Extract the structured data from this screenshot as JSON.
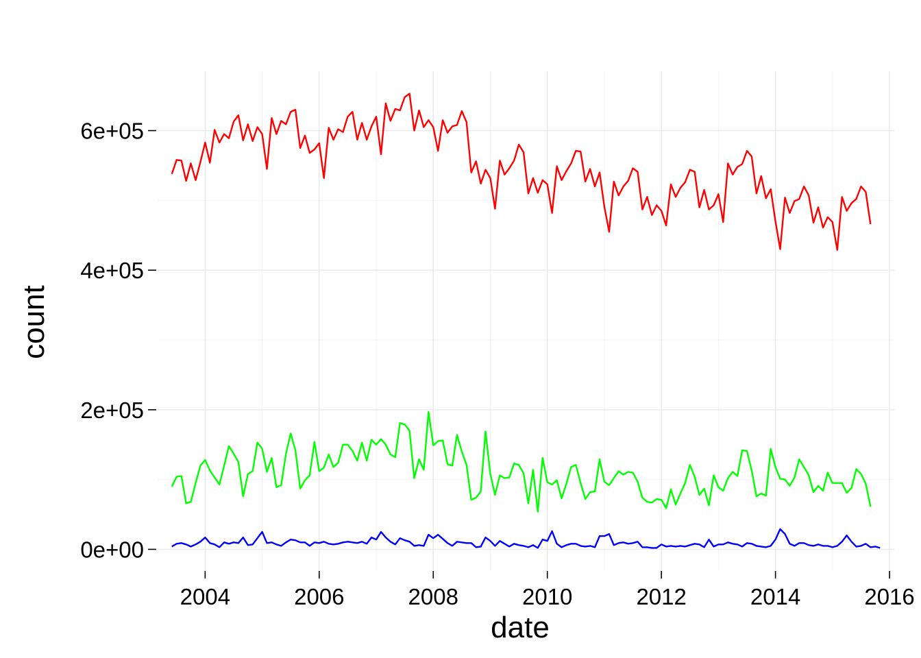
{
  "chart_data": {
    "type": "line",
    "title": "",
    "xlabel": "date",
    "ylabel": "count",
    "x_ticks": [
      "2004",
      "2006",
      "2008",
      "2010",
      "2012",
      "2014",
      "2016"
    ],
    "x_tick_years": [
      2004,
      2006,
      2008,
      2010,
      2012,
      2014,
      2016
    ],
    "y_ticks": [
      "0e+00",
      "2e+05",
      "4e+05",
      "6e+05"
    ],
    "y_tick_values": [
      0,
      200000,
      400000,
      600000
    ],
    "xlim": [
      "2003-03",
      "2016-02"
    ],
    "ylim": [
      -30000,
      685000
    ],
    "grid": true,
    "legend": "none",
    "x_start": "2003-06",
    "x_step": "1 month",
    "series": [
      {
        "color": "#ff0000",
        "values": [
          538000,
          558000,
          557000,
          528000,
          553000,
          529000,
          555000,
          583000,
          554000,
          601000,
          583000,
          595000,
          589000,
          613000,
          622000,
          586000,
          609000,
          585000,
          605000,
          595000,
          545000,
          618000,
          595000,
          614000,
          609000,
          627000,
          630000,
          575000,
          593000,
          568000,
          573000,
          582000,
          532000,
          604000,
          587000,
          602000,
          598000,
          620000,
          627000,
          587000,
          611000,
          587000,
          606000,
          620000,
          566000,
          639000,
          614000,
          631000,
          629000,
          648000,
          653000,
          600000,
          629000,
          605000,
          615000,
          605000,
          571000,
          615000,
          597000,
          606000,
          608000,
          628000,
          612000,
          540000,
          556000,
          524000,
          544000,
          532000,
          488000,
          557000,
          537000,
          546000,
          557000,
          580000,
          569000,
          510000,
          532000,
          511000,
          529000,
          523000,
          482000,
          549000,
          529000,
          542000,
          553000,
          571000,
          570000,
          527000,
          545000,
          520000,
          540000,
          491000,
          455000,
          527000,
          507000,
          520000,
          528000,
          546000,
          541000,
          487000,
          505000,
          479000,
          493000,
          485000,
          464000,
          523000,
          505000,
          518000,
          526000,
          544000,
          541000,
          490000,
          515000,
          487000,
          493000,
          509000,
          469000,
          553000,
          537000,
          548000,
          552000,
          571000,
          563000,
          510000,
          535000,
          503000,
          516000,
          470000,
          430000,
          504000,
          482000,
          499000,
          502000,
          520000,
          507000,
          468000,
          490000,
          461000,
          476000,
          469000,
          429000,
          505000,
          485000,
          496000,
          502000,
          520000,
          512000,
          466000
        ]
      },
      {
        "color": "#00ff00",
        "values": [
          90000,
          104000,
          105000,
          66000,
          68000,
          95000,
          120000,
          128000,
          113000,
          103000,
          93000,
          120000,
          148000,
          137000,
          125000,
          76000,
          108000,
          112000,
          153000,
          144000,
          111000,
          131000,
          89000,
          92000,
          137000,
          166000,
          142000,
          87000,
          99000,
          106000,
          154000,
          112000,
          117000,
          136000,
          118000,
          124000,
          150000,
          150000,
          141000,
          127000,
          153000,
          127000,
          157000,
          150000,
          158000,
          150000,
          136000,
          132000,
          181000,
          179000,
          170000,
          102000,
          129000,
          114000,
          197000,
          149000,
          155000,
          156000,
          122000,
          120000,
          164000,
          140000,
          121000,
          71000,
          74000,
          83000,
          169000,
          108000,
          78000,
          106000,
          102000,
          103000,
          123000,
          121000,
          109000,
          66000,
          114000,
          54000,
          131000,
          96000,
          93000,
          99000,
          73000,
          94000,
          118000,
          121000,
          95000,
          72000,
          82000,
          83000,
          129000,
          97000,
          92000,
          102000,
          112000,
          107000,
          111000,
          110000,
          97000,
          74000,
          68000,
          67000,
          72000,
          71000,
          59000,
          86000,
          64000,
          80000,
          95000,
          121000,
          104000,
          78000,
          87000,
          63000,
          106000,
          89000,
          84000,
          102000,
          111000,
          105000,
          142000,
          141000,
          113000,
          76000,
          80000,
          77000,
          144000,
          118000,
          101000,
          100000,
          91000,
          103000,
          129000,
          118000,
          106000,
          82000,
          91000,
          84000,
          110000,
          95000,
          95000,
          95000,
          81000,
          88000,
          115000,
          108000,
          94000,
          61000
        ]
      },
      {
        "color": "#0000ff",
        "values": [
          4000,
          8000,
          9000,
          7000,
          4000,
          7000,
          11000,
          17000,
          9000,
          7000,
          3000,
          10000,
          8000,
          10000,
          9000,
          17000,
          6000,
          7000,
          16000,
          25000,
          9000,
          10000,
          7000,
          5000,
          10000,
          14000,
          13000,
          10000,
          10000,
          5000,
          10000,
          9000,
          11000,
          8000,
          7000,
          8000,
          10000,
          11000,
          10000,
          9000,
          11000,
          8000,
          17000,
          14000,
          25000,
          17000,
          11000,
          7000,
          16000,
          13000,
          11000,
          5000,
          6000,
          5000,
          21000,
          16000,
          21000,
          15000,
          9000,
          5000,
          11000,
          10000,
          9000,
          9000,
          3000,
          4000,
          17000,
          12000,
          5000,
          12000,
          8000,
          4000,
          8000,
          6000,
          5000,
          3000,
          6000,
          2000,
          14000,
          12000,
          26000,
          8000,
          3000,
          6000,
          8000,
          8000,
          5000,
          4000,
          5000,
          3000,
          19000,
          19000,
          22000,
          6000,
          9000,
          10000,
          8000,
          9000,
          11000,
          3000,
          3000,
          2000,
          2000,
          7000,
          4000,
          5000,
          4000,
          5000,
          4000,
          6000,
          8000,
          7000,
          3000,
          14000,
          4000,
          7000,
          7000,
          10000,
          8000,
          7000,
          4000,
          9000,
          8000,
          5000,
          4000,
          3000,
          5000,
          14000,
          29000,
          22000,
          8000,
          5000,
          9000,
          9000,
          6000,
          5000,
          7000,
          5000,
          5000,
          3000,
          5000,
          11000,
          20000,
          11000,
          4000,
          5000,
          8000,
          3000,
          4000,
          2000
        ]
      }
    ]
  }
}
